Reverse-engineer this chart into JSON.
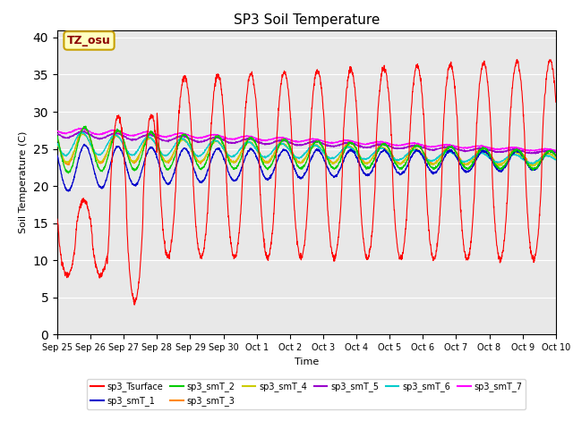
{
  "title": "SP3 Soil Temperature",
  "ylabel": "Soil Temperature (C)",
  "xlabel": "Time",
  "annotation_text": "TZ_osu",
  "annotation_color": "#8B0000",
  "annotation_bg": "#FFFFC0",
  "annotation_border": "#C8A000",
  "ylim": [
    0,
    41
  ],
  "yticks": [
    0,
    5,
    10,
    15,
    20,
    25,
    30,
    35,
    40
  ],
  "bg_color": "#E8E8E8",
  "series_colors": {
    "sp3_Tsurface": "#FF0000",
    "sp3_smT_1": "#0000CC",
    "sp3_smT_2": "#00CC00",
    "sp3_smT_3": "#FF8800",
    "sp3_smT_4": "#CCCC00",
    "sp3_smT_5": "#9900CC",
    "sp3_smT_6": "#00CCCC",
    "sp3_smT_7": "#FF00FF"
  },
  "x_tick_labels": [
    "Sep 25",
    "Sep 26",
    "Sep 27",
    "Sep 28",
    "Sep 29",
    "Sep 30",
    "Oct 1",
    "Oct 2",
    "Oct 3",
    "Oct 4",
    "Oct 5",
    "Oct 6",
    "Oct 7",
    "Oct 8",
    "Oct 9",
    "Oct 10"
  ],
  "n_days": 15,
  "figsize": [
    6.4,
    4.8
  ],
  "dpi": 100
}
